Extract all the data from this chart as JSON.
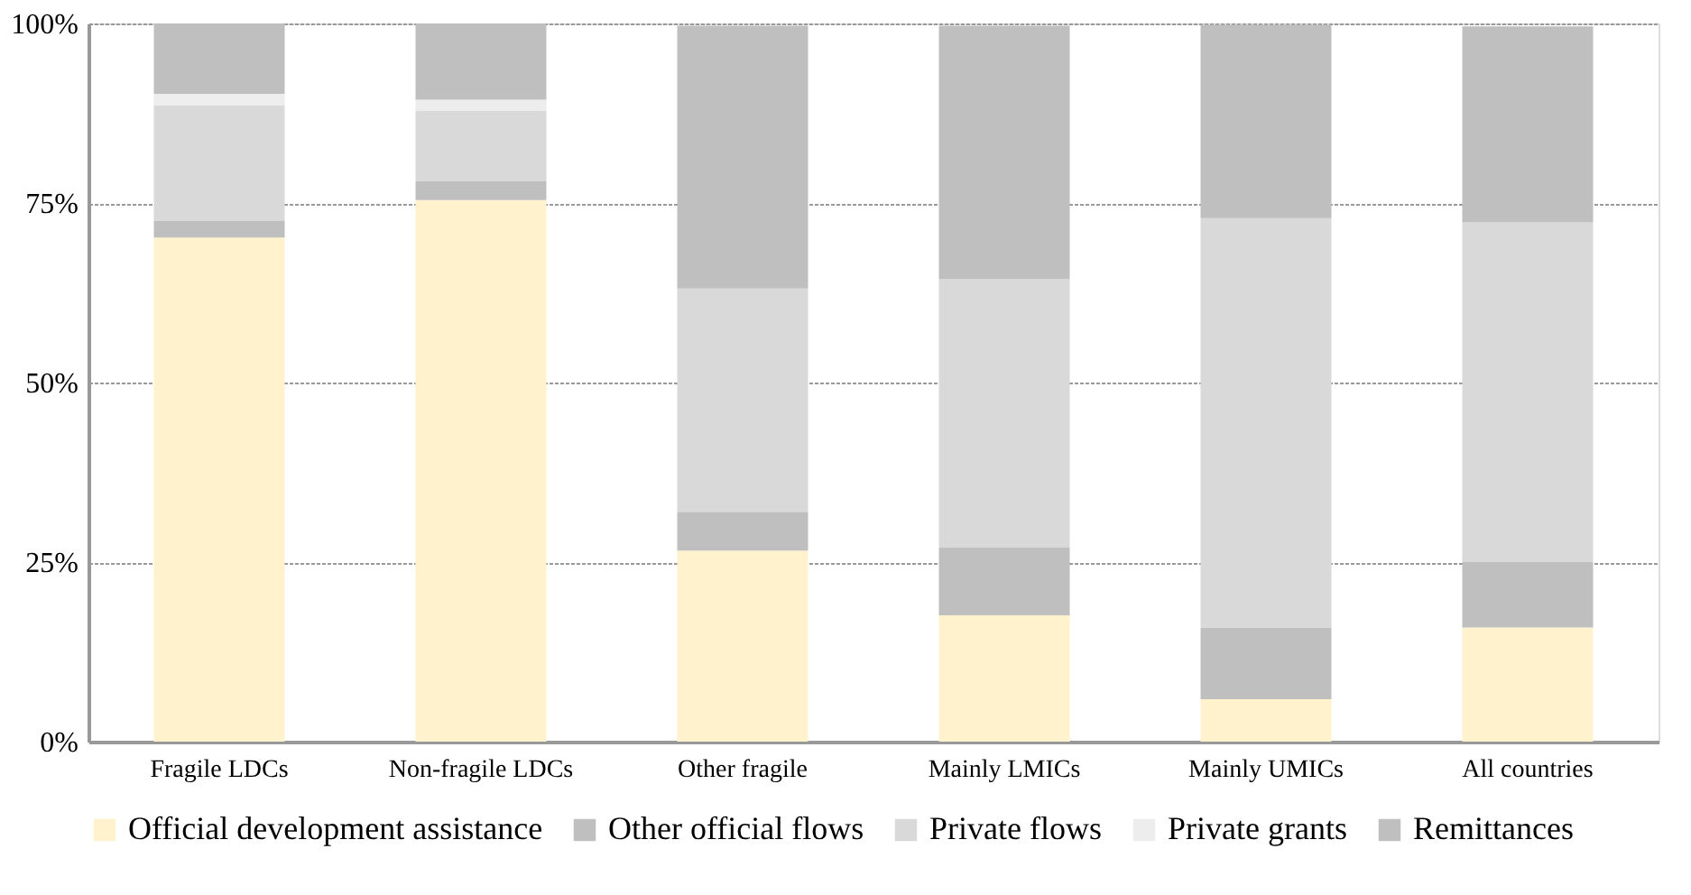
{
  "chart_data": {
    "type": "bar",
    "stacked": true,
    "categories": [
      "Fragile LDCs",
      "Non-fragile LDCs",
      "Other fragile",
      "Mainly LMICs",
      "Mainly UMICs",
      "All countries"
    ],
    "series": [
      {
        "name": "Official development assistance",
        "color": "#fff2cc",
        "values": [
          70.2,
          75.4,
          26.6,
          17.6,
          5.9,
          15.9
        ]
      },
      {
        "name": "Other official flows",
        "color": "#bfbfbf",
        "values": [
          2.3,
          2.6,
          5.4,
          9.4,
          10.0,
          9.1
        ]
      },
      {
        "name": "Private flows",
        "color": "#d9d9d9",
        "values": [
          16.1,
          9.8,
          31.1,
          37.4,
          57.0,
          47.3
        ]
      },
      {
        "name": "Private grants",
        "color": "#ededed",
        "values": [
          1.6,
          1.6,
          null,
          null,
          null,
          null
        ]
      },
      {
        "name": "Remittances",
        "color": "#bfbfbf",
        "values": [
          9.8,
          10.6,
          36.6,
          35.3,
          26.9,
          27.3
        ]
      }
    ],
    "ylim": [
      0,
      100
    ],
    "yticks": [
      {
        "value": 0,
        "label": "0%"
      },
      {
        "value": 25,
        "label": "25%"
      },
      {
        "value": 50,
        "label": "50%"
      },
      {
        "value": 75,
        "label": "75%"
      },
      {
        "value": 100,
        "label": "100%"
      }
    ],
    "grid": "y",
    "legend": "bottom"
  }
}
